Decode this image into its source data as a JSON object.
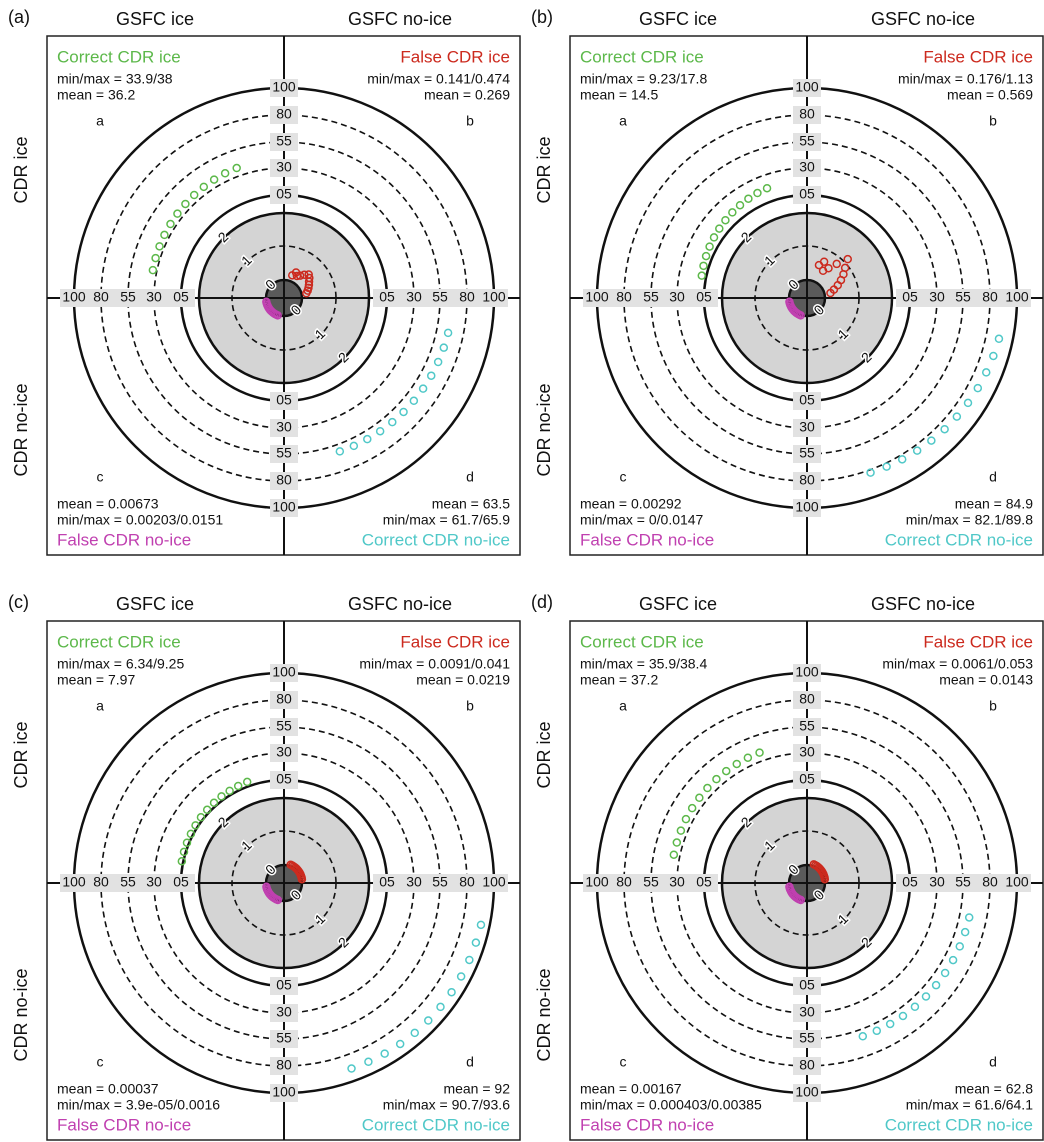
{
  "chart_data": [
    {
      "type": "polar",
      "panel": "(a)",
      "columns": [
        "GSFC ice",
        "GSFC no-ice"
      ],
      "rows": [
        "CDR ice",
        "CDR no-ice"
      ],
      "rticks": [
        0,
        1,
        2,
        {
          "value": 5,
          "label": "05"
        },
        30,
        55,
        80,
        100
      ],
      "series": [
        {
          "name": "Correct CDR ice",
          "color": "#5cb84a",
          "letter": "a",
          "stats": [
            "min/max = 33.9/38",
            "mean = 36.2"
          ],
          "values": [
            33.9,
            34.3,
            34.6,
            35.0,
            35.3,
            35.7,
            36.0,
            36.4,
            36.8,
            37.2,
            37.6,
            38
          ]
        },
        {
          "name": "False CDR ice",
          "color": "#cc2a1e",
          "letter": "b",
          "stats": [
            "min/max = 0.141/0.474",
            "mean = 0.269"
          ],
          "values": [
            0.141,
            0.2,
            0.25,
            0.3,
            0.35,
            0.42,
            0.474,
            0.38,
            0.28,
            0.22,
            0.3,
            0.18
          ]
        },
        {
          "name": "False CDR no-ice",
          "color": "#c040b0",
          "letter": "c",
          "stats": [
            "mean = 0.00673",
            "min/max = 0.00203/0.0151"
          ],
          "values": [
            0.00203,
            0.003,
            0.004,
            0.005,
            0.006,
            0.007,
            0.008,
            0.009,
            0.01,
            0.011,
            0.013,
            0.0151
          ]
        },
        {
          "name": "Correct CDR no-ice",
          "color": "#50c8c8",
          "letter": "d",
          "stats": [
            "mean = 63.5",
            "min/max = 61.7/65.9"
          ],
          "values": [
            65.9,
            65.5,
            65.1,
            64.7,
            64.3,
            63.9,
            63.5,
            63.1,
            62.7,
            62.3,
            62.0,
            61.7
          ]
        }
      ]
    },
    {
      "type": "polar",
      "panel": "(b)",
      "columns": [
        "GSFC ice",
        "GSFC no-ice"
      ],
      "rows": [
        "CDR ice",
        "CDR no-ice"
      ],
      "rticks": [
        0,
        1,
        2,
        {
          "value": 5,
          "label": "05"
        },
        30,
        55,
        80,
        100
      ],
      "series": [
        {
          "name": "Correct CDR ice",
          "color": "#5cb84a",
          "letter": "a",
          "stats": [
            "min/max = 9.23/17.8",
            "mean = 14.5"
          ],
          "values": [
            9.23,
            10,
            10.8,
            11.6,
            12.4,
            13.2,
            14,
            14.8,
            15.6,
            16.4,
            17.1,
            17.8
          ]
        },
        {
          "name": "False CDR ice",
          "color": "#cc2a1e",
          "letter": "b",
          "stats": [
            "min/max = 0.176/1.13",
            "mean = 0.569"
          ],
          "values": [
            0.176,
            0.3,
            0.45,
            0.6,
            0.75,
            0.9,
            1.13,
            0.8,
            0.55,
            0.4,
            0.65,
            0.5
          ]
        },
        {
          "name": "False CDR no-ice",
          "color": "#c040b0",
          "letter": "c",
          "stats": [
            "mean = 0.00292",
            "min/max = 0/0.0147"
          ],
          "values": [
            0,
            0.001,
            0.002,
            0.003,
            0.004,
            0.005,
            0.006,
            0.007,
            0.008,
            0.01,
            0.012,
            0.0147
          ]
        },
        {
          "name": "Correct CDR no-ice",
          "color": "#50c8c8",
          "letter": "d",
          "stats": [
            "mean = 84.9",
            "min/max = 82.1/89.8"
          ],
          "values": [
            89.8,
            89,
            88.2,
            87.5,
            86.8,
            86,
            85.3,
            84.6,
            83.9,
            83.2,
            82.6,
            82.1
          ]
        }
      ]
    },
    {
      "type": "polar",
      "panel": "(c)",
      "columns": [
        "GSFC ice",
        "GSFC no-ice"
      ],
      "rows": [
        "CDR ice",
        "CDR no-ice"
      ],
      "rticks": [
        0,
        1,
        2,
        {
          "value": 5,
          "label": "05"
        },
        30,
        55,
        80,
        100
      ],
      "series": [
        {
          "name": "Correct CDR ice",
          "color": "#5cb84a",
          "letter": "a",
          "stats": [
            "min/max = 6.34/9.25",
            "mean = 7.97"
          ],
          "values": [
            6.34,
            6.6,
            6.9,
            7.1,
            7.4,
            7.7,
            7.9,
            8.2,
            8.5,
            8.7,
            9,
            9.25
          ]
        },
        {
          "name": "False CDR ice",
          "color": "#cc2a1e",
          "letter": "b",
          "stats": [
            "min/max = 0.0091/0.041",
            "mean = 0.0219"
          ],
          "values": [
            0.0091,
            0.012,
            0.015,
            0.018,
            0.021,
            0.024,
            0.027,
            0.03,
            0.033,
            0.036,
            0.039,
            0.041
          ]
        },
        {
          "name": "False CDR no-ice",
          "color": "#c040b0",
          "letter": "c",
          "stats": [
            "mean = 0.00037",
            "min/max = 3.9e-05/0.0016"
          ],
          "values": [
            3.9e-05,
            0.0002,
            0.0003,
            0.0004,
            0.0005,
            0.0006,
            0.0007,
            0.0008,
            0.001,
            0.0012,
            0.0014,
            0.0016
          ]
        },
        {
          "name": "Correct CDR no-ice",
          "color": "#50c8c8",
          "letter": "d",
          "stats": [
            "mean = 92",
            "min/max = 90.7/93.6"
          ],
          "values": [
            93.6,
            93.3,
            93.1,
            92.8,
            92.6,
            92.3,
            92.1,
            91.8,
            91.5,
            91.2,
            90.9,
            90.7
          ]
        }
      ]
    },
    {
      "type": "polar",
      "panel": "(d)",
      "columns": [
        "GSFC ice",
        "GSFC no-ice"
      ],
      "rows": [
        "CDR ice",
        "CDR no-ice"
      ],
      "rticks": [
        0,
        1,
        2,
        {
          "value": 5,
          "label": "05"
        },
        30,
        55,
        80,
        100
      ],
      "series": [
        {
          "name": "Correct CDR ice",
          "color": "#5cb84a",
          "letter": "a",
          "stats": [
            "min/max = 35.9/38.4",
            "mean = 37.2"
          ],
          "values": [
            35.9,
            36.1,
            36.3,
            36.6,
            36.8,
            37,
            37.3,
            37.5,
            37.7,
            37.9,
            38.2,
            38.4
          ]
        },
        {
          "name": "False CDR ice",
          "color": "#cc2a1e",
          "letter": "b",
          "stats": [
            "min/max = 0.0061/0.053",
            "mean = 0.0143"
          ],
          "values": [
            0.0061,
            0.01,
            0.014,
            0.018,
            0.022,
            0.027,
            0.032,
            0.036,
            0.04,
            0.045,
            0.049,
            0.053
          ]
        },
        {
          "name": "False CDR no-ice",
          "color": "#c040b0",
          "letter": "c",
          "stats": [
            "mean = 0.00167",
            "min/max = 0.000403/0.00385"
          ],
          "values": [
            0.000403,
            0.0007,
            0.001,
            0.0013,
            0.0016,
            0.0019,
            0.0022,
            0.0025,
            0.0028,
            0.0031,
            0.0035,
            0.00385
          ]
        },
        {
          "name": "Correct CDR no-ice",
          "color": "#50c8c8",
          "letter": "d",
          "stats": [
            "mean = 62.8",
            "min/max = 61.6/64.1"
          ],
          "values": [
            64.1,
            63.9,
            63.7,
            63.5,
            63.2,
            63,
            62.8,
            62.6,
            62.4,
            62.1,
            61.9,
            61.6
          ]
        }
      ]
    }
  ]
}
